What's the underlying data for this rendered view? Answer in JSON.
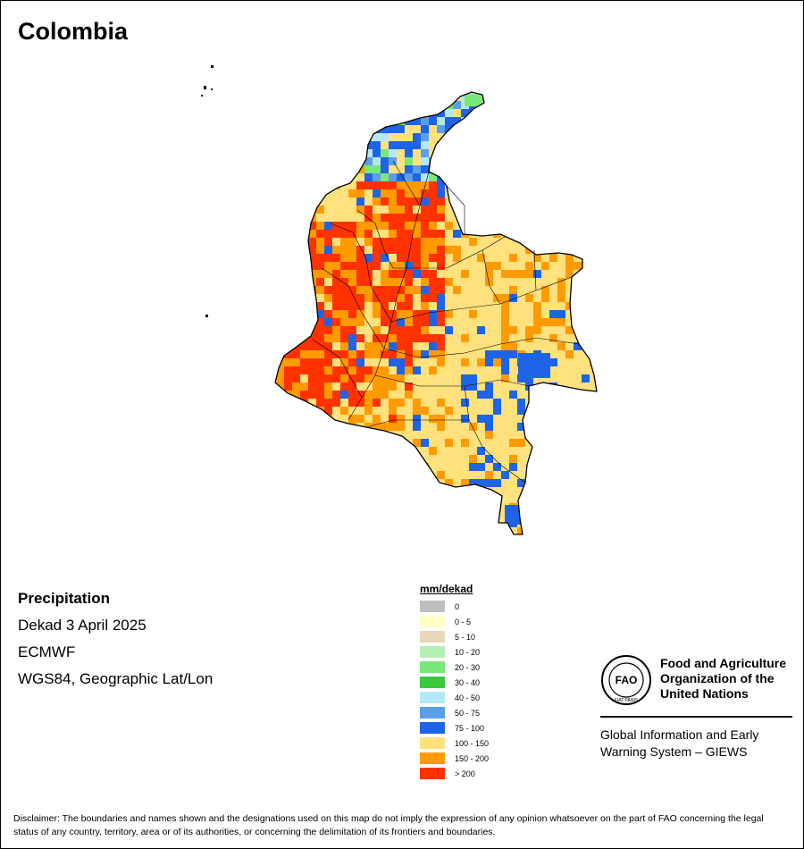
{
  "title": "Colombia",
  "info": {
    "variable": "Precipitation",
    "period": "Dekad 3 April 2025",
    "model": "ECMWF",
    "projection": "WGS84, Geographic Lat/Lon"
  },
  "legend": {
    "title": "mm/dekad",
    "classes": [
      {
        "label": "0",
        "color": "#bebebe"
      },
      {
        "label": "0 - 5",
        "color": "#ffffc8"
      },
      {
        "label": "5 - 10",
        "color": "#e8d8b8"
      },
      {
        "label": "10 - 20",
        "color": "#b4f0b4"
      },
      {
        "label": "20 - 30",
        "color": "#78e878"
      },
      {
        "label": "30 - 40",
        "color": "#3cc83c"
      },
      {
        "label": "40 - 50",
        "color": "#b4e8f4"
      },
      {
        "label": "50 - 75",
        "color": "#5aa0e8"
      },
      {
        "label": "75 - 100",
        "color": "#1e64e6"
      },
      {
        "label": "100 - 150",
        "color": "#ffe17d"
      },
      {
        "label": "150 - 200",
        "color": "#ff9b00"
      },
      {
        "label": "> 200",
        "color": "#ff3200"
      }
    ]
  },
  "fao": {
    "name_lines": [
      "Food and Agriculture",
      "Organization of the",
      "United Nations"
    ],
    "system_lines": [
      "Global Information and Early",
      "Warning System – GIEWS"
    ],
    "logo_text": "FAO",
    "logo_ring_text": "FIAT PANIS"
  },
  "map": {
    "base_color": "#ffe17d",
    "wet_region_color": "#ff9b00",
    "extreme_region_color": "#ff3200",
    "coastal_wet_color": "#1e64e6"
  },
  "disclaimer": "Disclaimer: The boundaries and names shown and the designations used on this map do not imply the expression of any opinion whatsoever on the part of FAO concerning the legal status of any country, territory, area or of its authorities, or concerning the delimitation of its frontiers and boundaries."
}
